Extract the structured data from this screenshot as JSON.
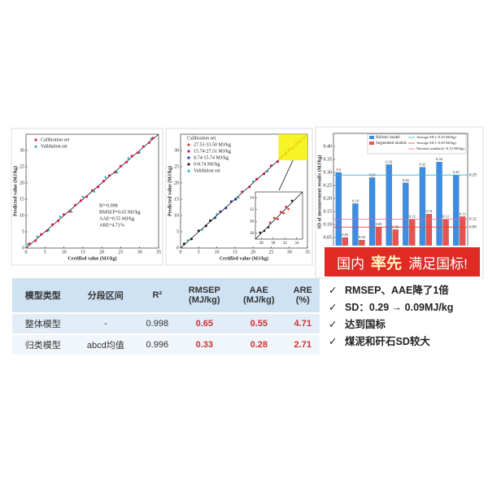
{
  "chart_data": [
    {
      "type": "scatter",
      "x_label": "Certified value (MJ/kg)",
      "y_label": "Predicted value (MJ/kg)",
      "xlim": [
        0,
        35
      ],
      "ylim": [
        0,
        35
      ],
      "xticks": [
        0,
        5,
        10,
        15,
        20,
        25,
        30,
        35
      ],
      "yticks": [
        0,
        5,
        10,
        15,
        20,
        25,
        30
      ],
      "annotations": [
        "R²=0.998",
        "RMSEP=0.65 MJ/kg",
        "AAE=0.55 MJ/kg",
        "ARE=4.71%"
      ],
      "series": [
        {
          "name": "Calibration set",
          "color": "#d9204a",
          "marker": "circle",
          "x": [
            1,
            2.5,
            4,
            5.5,
            7,
            8.5,
            10,
            11.5,
            13,
            14.5,
            16,
            17.5,
            19,
            20.5,
            22,
            23.5,
            25,
            26.5,
            28,
            29.5,
            31,
            32.5,
            33.5
          ],
          "values": [
            1.3,
            2.3,
            4.2,
            5.3,
            7.2,
            8.4,
            10.3,
            11.3,
            13.2,
            14.6,
            15.8,
            17.7,
            18.8,
            20.6,
            22.3,
            23.3,
            25.2,
            26.4,
            28.3,
            29.3,
            31.2,
            32.4,
            33.8
          ]
        },
        {
          "name": "Validation set",
          "color": "#1aa5a5",
          "marker": "triangle",
          "x": [
            0.5,
            3,
            6,
            9,
            12,
            15,
            18,
            21,
            24,
            27,
            30,
            33
          ],
          "values": [
            1.2,
            3.6,
            5.5,
            9.7,
            11.2,
            15.8,
            17.4,
            21.8,
            23.3,
            27.6,
            29.4,
            33.6
          ]
        }
      ]
    },
    {
      "type": "scatter",
      "x_label": "Certified value (MJ/kg)",
      "y_label": "Predicted value (MJ/kg)",
      "xlim": [
        0,
        35
      ],
      "ylim": [
        0,
        35
      ],
      "xticks": [
        0,
        5,
        10,
        15,
        20,
        25,
        30,
        35
      ],
      "yticks": [
        0,
        5,
        10,
        15,
        20,
        25,
        30
      ],
      "legend_title": "Calibration set",
      "series": [
        {
          "name": "27.51-33.50 MJ/kg",
          "color": "#e53935",
          "marker": "circle",
          "x": [
            28,
            29,
            30,
            31,
            32,
            33
          ],
          "values": [
            28.3,
            28.8,
            30.4,
            30.8,
            32.3,
            32.8
          ]
        },
        {
          "name": "15.74-27.51 MJ/kg",
          "color": "#c2185b",
          "marker": "circle",
          "x": [
            17,
            19,
            21,
            23,
            25,
            26.8
          ],
          "values": [
            17.3,
            18.8,
            21.2,
            22.8,
            25.3,
            26.6
          ]
        },
        {
          "name": "8.74-15.74 MJ/kg",
          "color": "#283593",
          "marker": "circle",
          "x": [
            9.5,
            11,
            12.5,
            14,
            15.2
          ],
          "values": [
            9.3,
            11.2,
            12.3,
            14.3,
            15.0
          ]
        },
        {
          "name": "0-8.74 MJ/kg",
          "color": "#222222",
          "marker": "circle",
          "x": [
            1,
            3,
            5,
            7,
            8.2
          ],
          "values": [
            1.3,
            2.8,
            5.3,
            6.8,
            8.4
          ]
        },
        {
          "name": "Validation set",
          "color": "#1aa5a5",
          "marker": "triangle",
          "x": [
            2,
            6,
            10,
            16,
            20,
            24,
            29,
            32
          ],
          "values": [
            2.4,
            5.7,
            10.4,
            15.6,
            20.5,
            23.6,
            29.5,
            31.6
          ]
        }
      ]
    },
    {
      "type": "scatter",
      "inset": true,
      "xlim": [
        27,
        35
      ],
      "ylim": [
        27,
        35
      ],
      "xticks": [
        28,
        30,
        32,
        34
      ],
      "yticks": [
        28,
        30,
        32,
        34
      ],
      "series": [
        {
          "color": "#e53935",
          "marker": "circle",
          "x": [
            29.5,
            30.2,
            30.8,
            31.3,
            31.8,
            32.2,
            32.6
          ],
          "values": [
            29.8,
            30.6,
            30.4,
            31.6,
            31.4,
            32.5,
            32.1
          ]
        },
        {
          "color": "#222222",
          "marker": "circle",
          "x": [
            27.8,
            28.5,
            29.2,
            33.2
          ],
          "values": [
            28.1,
            28.4,
            29.0,
            33.5
          ]
        }
      ]
    },
    {
      "type": "bar",
      "y_label": "SD of measurement results (MJ/kg)",
      "ylim": [
        0,
        0.45
      ],
      "yticks": [
        {
          "value": 0.05,
          "label": "0.05"
        },
        {
          "value": 0.1,
          "label": "0.10"
        },
        {
          "value": 0.15,
          "label": "0.15"
        },
        {
          "value": 0.2,
          "label": "0.20"
        },
        {
          "value": 0.25,
          "label": "0.25"
        },
        {
          "value": 0.3,
          "label": "0.30"
        },
        {
          "value": 0.35,
          "label": "0.35"
        },
        {
          "value": 0.4,
          "label": "0.40"
        }
      ],
      "series": [
        {
          "name": "Holistic model",
          "color": "#3a8ee6",
          "values": [
            0.3,
            0.18,
            0.28,
            0.33,
            0.26,
            0.32,
            0.34,
            0.29
          ]
        },
        {
          "name": "Segmented models",
          "color": "#e8534f",
          "values": [
            0.05,
            0.04,
            0.09,
            0.08,
            0.12,
            0.14,
            0.12,
            0.13
          ]
        }
      ],
      "ref_lines": [
        {
          "name": "Average SD (~0.29 MJ/kg)",
          "value": 0.29,
          "color": "#2bb5c8"
        },
        {
          "name": "Average SD (~0.09 MJ/kg)",
          "value": 0.09,
          "color": "#e0433e"
        },
        {
          "name": "National standard (~0.12 MJ/kg)",
          "value": 0.12,
          "color": "#f06292"
        }
      ]
    }
  ],
  "table": {
    "header": [
      "模型类型",
      "分段区间",
      "R²",
      "RMSEP\n(MJ/kg)",
      "AAE\n(MJ/kg)",
      "ARE\n(%)"
    ],
    "rows": [
      [
        "整体模型",
        "-",
        0.998,
        0.65,
        0.55,
        4.71
      ],
      [
        "归类模型",
        "abcd均值",
        0.996,
        0.33,
        0.28,
        2.71
      ]
    ]
  },
  "banner": {
    "parts": [
      "国内",
      "率先",
      "满足国标!"
    ]
  },
  "bullets": [
    "RMSEP、AAE降了1倍",
    "SD：0.29 → 0.09MJ/kg",
    "达到国标",
    "煤泥和矸石SD较大"
  ]
}
